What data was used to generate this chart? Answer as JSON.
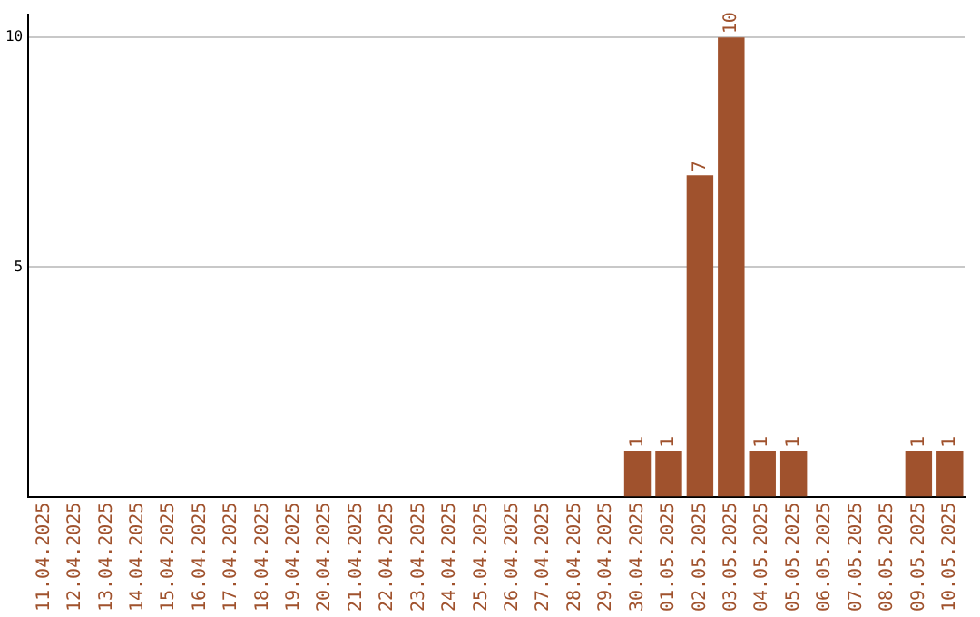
{
  "chart_data": {
    "type": "bar",
    "categories": [
      "11.04.2025",
      "12.04.2025",
      "13.04.2025",
      "14.04.2025",
      "15.04.2025",
      "16.04.2025",
      "17.04.2025",
      "18.04.2025",
      "19.04.2025",
      "20.04.2025",
      "21.04.2025",
      "22.04.2025",
      "23.04.2025",
      "24.04.2025",
      "25.04.2025",
      "26.04.2025",
      "27.04.2025",
      "28.04.2025",
      "29.04.2025",
      "30.04.2025",
      "01.05.2025",
      "02.05.2025",
      "03.05.2025",
      "04.05.2025",
      "05.05.2025",
      "06.05.2025",
      "07.05.2025",
      "08.05.2025",
      "09.05.2025",
      "10.05.2025"
    ],
    "values": [
      0,
      0,
      0,
      0,
      0,
      0,
      0,
      0,
      0,
      0,
      0,
      0,
      0,
      0,
      0,
      0,
      0,
      0,
      0,
      1,
      1,
      7,
      10,
      1,
      1,
      0,
      0,
      0,
      1,
      1
    ],
    "value_labels": [
      null,
      null,
      null,
      null,
      null,
      null,
      null,
      null,
      null,
      null,
      null,
      null,
      null,
      null,
      null,
      null,
      null,
      null,
      null,
      "1",
      "1",
      "7",
      "10",
      "1",
      "1",
      null,
      null,
      null,
      "1",
      "1"
    ],
    "color": "#a0522d",
    "ylim": [
      0,
      10.5
    ],
    "yticks": [
      5,
      10
    ],
    "grid": "y"
  }
}
